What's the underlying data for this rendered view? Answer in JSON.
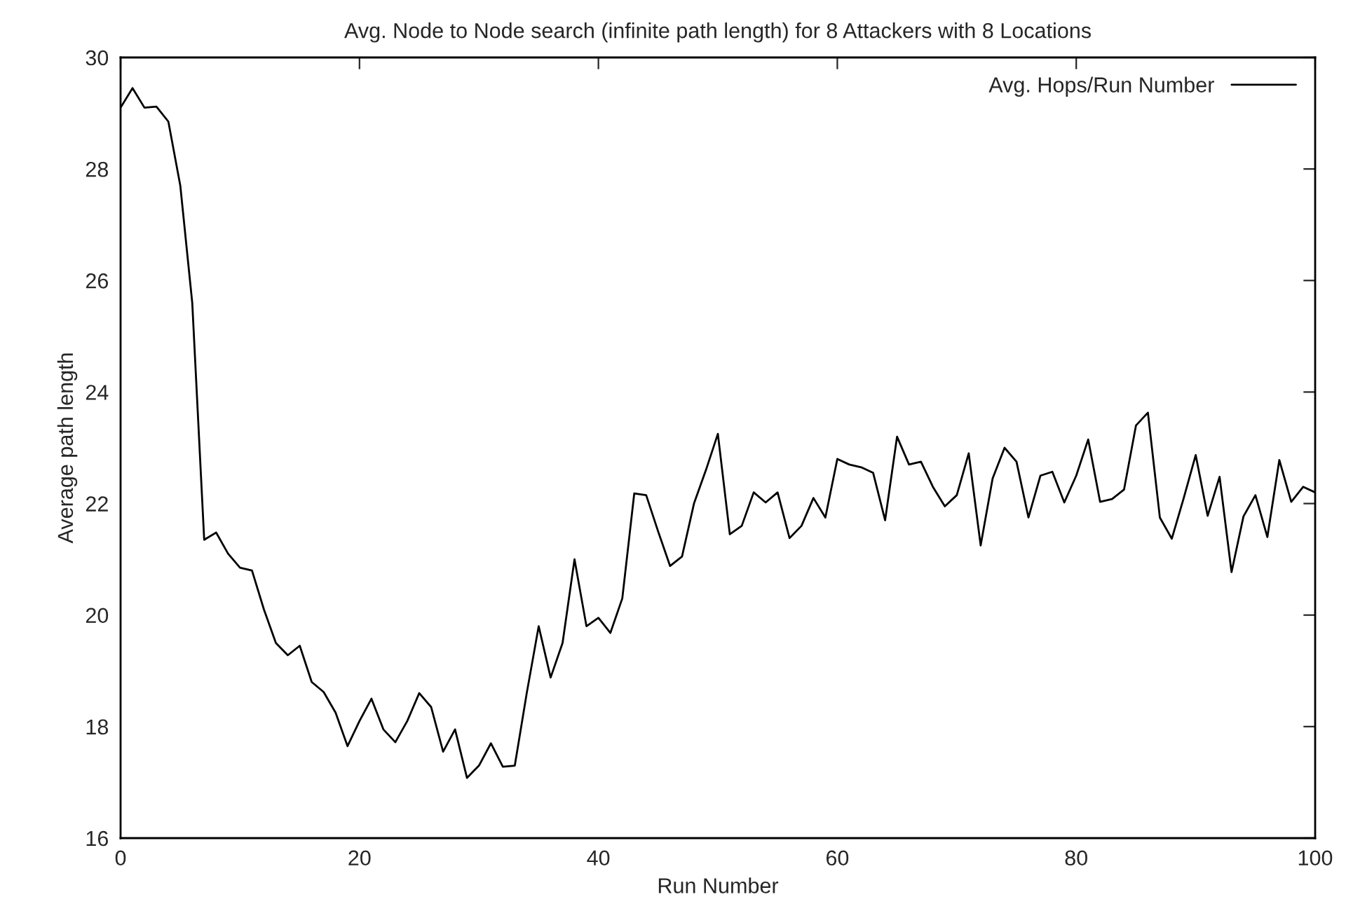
{
  "chart_data": {
    "type": "line",
    "title": "Avg. Node to Node search (infinite path length) for 8 Attackers with 8 Locations",
    "xlabel": "Run Number",
    "ylabel": "Average path length",
    "x": [
      0,
      1,
      2,
      3,
      4,
      5,
      6,
      7,
      8,
      9,
      10,
      11,
      12,
      13,
      14,
      15,
      16,
      17,
      18,
      19,
      20,
      21,
      22,
      23,
      24,
      25,
      26,
      27,
      28,
      29,
      30,
      31,
      32,
      33,
      34,
      35,
      36,
      37,
      38,
      39,
      40,
      41,
      42,
      43,
      44,
      45,
      46,
      47,
      48,
      49,
      50,
      51,
      52,
      53,
      54,
      55,
      56,
      57,
      58,
      59,
      60,
      61,
      62,
      63,
      64,
      65,
      66,
      67,
      68,
      69,
      70,
      71,
      72,
      73,
      74,
      75,
      76,
      77,
      78,
      79,
      80,
      81,
      82,
      83,
      84,
      85,
      86,
      87,
      88,
      89,
      90,
      91,
      92,
      93,
      94,
      95,
      96,
      97,
      98,
      99,
      100
    ],
    "series": [
      {
        "name": "Avg. Hops/Run Number",
        "color": "#000000",
        "values": [
          29.1,
          29.45,
          29.1,
          29.12,
          28.85,
          27.7,
          25.6,
          21.35,
          21.48,
          21.1,
          20.85,
          20.8,
          20.1,
          19.5,
          19.28,
          19.45,
          18.8,
          18.62,
          18.25,
          17.65,
          18.1,
          18.5,
          17.95,
          17.72,
          18.1,
          18.6,
          18.35,
          17.55,
          17.95,
          17.08,
          17.3,
          17.7,
          17.28,
          17.3,
          18.6,
          19.8,
          18.88,
          19.5,
          21.0,
          19.8,
          19.95,
          19.68,
          20.3,
          22.18,
          22.15,
          21.5,
          20.88,
          21.05,
          22.0,
          22.6,
          23.25,
          21.45,
          21.6,
          22.2,
          22.02,
          22.2,
          21.38,
          21.6,
          22.1,
          21.75,
          22.8,
          22.7,
          22.65,
          22.55,
          21.7,
          23.2,
          22.7,
          22.75,
          22.3,
          21.95,
          22.15,
          22.9,
          21.25,
          22.45,
          23.0,
          22.75,
          21.75,
          22.5,
          22.57,
          22.02,
          22.5,
          23.15,
          22.03,
          22.08,
          22.25,
          23.4,
          23.63,
          21.75,
          21.37,
          22.1,
          22.87,
          21.78,
          22.48,
          20.77,
          21.77,
          22.15,
          21.4,
          22.78,
          22.03,
          22.3,
          22.2
        ]
      }
    ],
    "xlim": [
      0,
      100
    ],
    "xticks": [
      0,
      20,
      40,
      60,
      80,
      100
    ],
    "ylim": [
      16,
      30
    ],
    "yticks": [
      16,
      18,
      20,
      22,
      24,
      26,
      28,
      30
    ],
    "grid": false,
    "legend": "top right",
    "marker": "none",
    "line_style": "solid"
  }
}
